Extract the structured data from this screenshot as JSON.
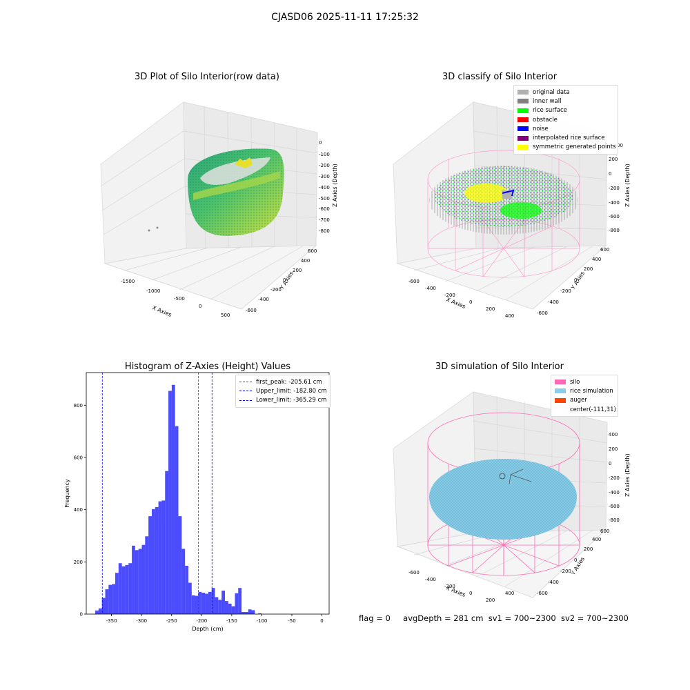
{
  "suptitle": "CJASD06 2025-11-11 17:25:32",
  "plots": {
    "raw": {
      "title": "3D Plot of Silo Interior(row data)",
      "xlabel": "X Axies",
      "ylabel": "Y Axies",
      "zlabel": "Z Axies (Depth)",
      "xticks": [
        "-1500",
        "-1000",
        "-500",
        "0",
        "500"
      ],
      "yticks": [
        "-600",
        "-400",
        "-200",
        "0",
        "200",
        "400",
        "600"
      ],
      "zticks": [
        "0",
        "-100",
        "-200",
        "-300",
        "-400",
        "-500",
        "-600",
        "-700",
        "-800"
      ]
    },
    "classify": {
      "title": "3D classify of Silo Interior",
      "xlabel": "X Axies",
      "ylabel": "Y Axies",
      "zlabel": "Z Axies (Depth)",
      "xticks": [
        "-600",
        "-400",
        "-200",
        "0",
        "200",
        "400"
      ],
      "yticks": [
        "-600",
        "-400",
        "-200",
        "0",
        "200",
        "400",
        "600"
      ],
      "zticks": [
        "200",
        "0",
        "-200",
        "-400",
        "-600",
        "-800"
      ],
      "zticks_top": "00",
      "legend": [
        {
          "label": "original data",
          "color": "#b0b0b0"
        },
        {
          "label": "inner wall",
          "color": "#808080"
        },
        {
          "label": "rice surface",
          "color": "#00ff00"
        },
        {
          "label": "obstacle",
          "color": "#ff0000"
        },
        {
          "label": "noise",
          "color": "#0000ff"
        },
        {
          "label": "interpolated rice surface",
          "color": "#800080"
        },
        {
          "label": "symmetric generated points",
          "color": "#ffff00"
        }
      ]
    },
    "simulation": {
      "title": "3D simulation of Silo Interior",
      "xlabel": "X Axies",
      "ylabel": "Y Axies",
      "zlabel": "Z Axies (Depth)",
      "xticks": [
        "-600",
        "-400",
        "-200",
        "0",
        "200",
        "400"
      ],
      "yticks": [
        "-600",
        "-400",
        "-200",
        "0",
        "200",
        "400",
        "600"
      ],
      "zticks": [
        "400",
        "200",
        "0",
        "-200",
        "-400",
        "-600",
        "-800"
      ],
      "legend": [
        {
          "label": "silo",
          "color": "#ff69b4"
        },
        {
          "label": "rice simulation",
          "color": "#87ceeb"
        },
        {
          "label": "auger",
          "color": "#ff4500"
        },
        {
          "label": "center(-111,31)",
          "color": "#ffffff"
        }
      ]
    }
  },
  "chart_data": {
    "type": "bar",
    "title": "Histogram of Z-Axies (Height) Values",
    "xlabel": "Depth (cm)",
    "ylabel": "Frequency",
    "xlim": [
      -392,
      12
    ],
    "ylim": [
      0,
      925
    ],
    "xticks": [
      -350,
      -300,
      -250,
      -200,
      -150,
      -100,
      -50,
      0
    ],
    "yticks": [
      0,
      200,
      400,
      600,
      800
    ],
    "bar_color": "#0000ff",
    "bin_start": -377,
    "bin_width": 5.53,
    "values": [
      14,
      22,
      62,
      95,
      112,
      115,
      158,
      195,
      183,
      188,
      195,
      262,
      245,
      250,
      265,
      298,
      375,
      402,
      410,
      432,
      435,
      548,
      855,
      878,
      720,
      375,
      250,
      185,
      120,
      72,
      70,
      85,
      82,
      78,
      85,
      100,
      65,
      55,
      90,
      50,
      40,
      30,
      80,
      100,
      8,
      8,
      18,
      15,
      0,
      3,
      0
    ],
    "lines": [
      {
        "label": "first_peak: -205.61 cm",
        "x": -205.61,
        "color": "#ff0000"
      },
      {
        "label": "Upper_limit: -182.80 cm",
        "x": -182.8,
        "color": "#0000ff"
      },
      {
        "label": "Lower_limit: -365.29 cm",
        "x": -365.29,
        "color": "#0000ff"
      }
    ]
  },
  "footer": {
    "flag": "flag = 0",
    "avg": "avgDepth = 281 cm",
    "sv1": "sv1 = 700~2300",
    "sv2": "sv2 = 700~2300"
  }
}
